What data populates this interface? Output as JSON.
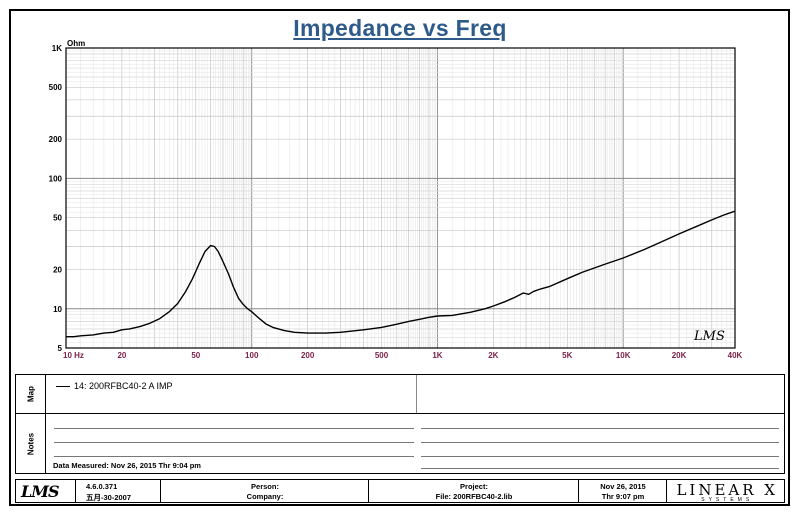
{
  "chart_data": {
    "type": "line",
    "title": "Impedance vs Freq",
    "ylabel_unit": "Ohm",
    "xscale": "log",
    "yscale": "log",
    "xlim": [
      10,
      40000
    ],
    "ylim": [
      5,
      1000
    ],
    "grid": true,
    "xtick_labels": [
      {
        "value": 10,
        "label": "10  Hz"
      },
      {
        "value": 20,
        "label": "20"
      },
      {
        "value": 50,
        "label": "50"
      },
      {
        "value": 100,
        "label": "100"
      },
      {
        "value": 200,
        "label": "200"
      },
      {
        "value": 500,
        "label": "500"
      },
      {
        "value": 1000,
        "label": "1K"
      },
      {
        "value": 2000,
        "label": "2K"
      },
      {
        "value": 5000,
        "label": "5K"
      },
      {
        "value": 10000,
        "label": "10K"
      },
      {
        "value": 20000,
        "label": "20K"
      },
      {
        "value": 40000,
        "label": "40K"
      }
    ],
    "ytick_labels": [
      {
        "value": 1000,
        "label": "1K"
      },
      {
        "value": 500,
        "label": "500"
      },
      {
        "value": 200,
        "label": "200"
      },
      {
        "value": 100,
        "label": "100"
      },
      {
        "value": 50,
        "label": "50"
      },
      {
        "value": 20,
        "label": "20"
      },
      {
        "value": 10,
        "label": "10"
      },
      {
        "value": 5,
        "label": "5"
      }
    ],
    "series": [
      {
        "name": "14: 200RFBC40-2 A  IMP",
        "color": "#000000",
        "x": [
          10,
          11,
          12,
          14,
          16,
          18,
          20,
          22,
          25,
          28,
          32,
          36,
          40,
          44,
          48,
          52,
          56,
          60,
          63,
          66,
          70,
          75,
          80,
          85,
          90,
          95,
          100,
          110,
          120,
          130,
          150,
          170,
          200,
          250,
          300,
          400,
          500,
          600,
          700,
          800,
          900,
          1000,
          1200,
          1500,
          1800,
          2000,
          2300,
          2600,
          2900,
          3100,
          3300,
          3600,
          4000,
          5000,
          6000,
          8000,
          10000,
          13000,
          16000,
          20000,
          25000,
          30000,
          35000,
          40000
        ],
        "y": [
          6.1,
          6.1,
          6.2,
          6.3,
          6.5,
          6.6,
          6.9,
          7.0,
          7.3,
          7.7,
          8.4,
          9.5,
          11.0,
          13.5,
          17.0,
          22.0,
          27.5,
          30.5,
          30.0,
          27.5,
          23.0,
          18.5,
          14.5,
          12.0,
          10.8,
          10.0,
          9.5,
          8.4,
          7.6,
          7.2,
          6.8,
          6.6,
          6.5,
          6.5,
          6.6,
          6.9,
          7.2,
          7.6,
          8.0,
          8.3,
          8.6,
          8.8,
          8.9,
          9.4,
          10.0,
          10.5,
          11.3,
          12.2,
          13.2,
          12.9,
          13.6,
          14.2,
          14.8,
          17.0,
          19.0,
          22.0,
          24.5,
          28.5,
          32.5,
          37.5,
          43.0,
          48.0,
          52.5,
          56.0
        ]
      }
    ]
  },
  "logo_text": "LMS",
  "map": {
    "side_label": "Map",
    "entry": "14: 200RFBC40-2 A  IMP"
  },
  "notes": {
    "side_label": "Notes",
    "measured": "Data Measured: Nov 26, 2015  Thr  9:04 pm"
  },
  "footer": {
    "logo": "LMS",
    "version": "4.6.0.371",
    "version_date": "五月-30-2007",
    "person_label": "Person:",
    "company_label": "Company:",
    "project_label": "Project:",
    "file_label": "File: 200RFBC40-2.lib",
    "date": "Nov 26, 2015",
    "time": "Thr  9:07 pm",
    "brand": "LINEAR X",
    "brand_sub": "SYSTEMS"
  }
}
